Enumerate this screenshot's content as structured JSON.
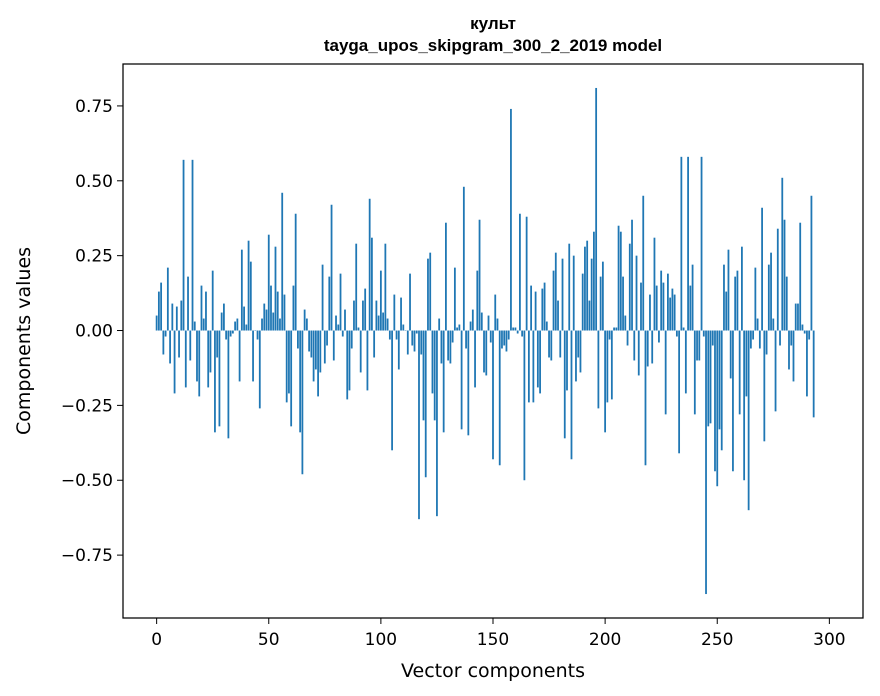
{
  "chart_data": {
    "type": "bar",
    "title_line1": "культ",
    "title_line2": "tayga_upos_skipgram_300_2_2019 model",
    "xlabel": "Vector components",
    "ylabel": "Components values",
    "xlim": [
      -15,
      315
    ],
    "ylim": [
      -0.96,
      0.89
    ],
    "xticks": [
      0,
      50,
      100,
      150,
      200,
      250,
      300
    ],
    "yticks": [
      -0.75,
      -0.5,
      -0.25,
      0.0,
      0.25,
      0.5,
      0.75
    ],
    "ytick_labels": [
      "−0.75",
      "−0.50",
      "−0.25",
      "0.00",
      "0.25",
      "0.50",
      "0.75"
    ],
    "bar_color": "#1f77b4",
    "values": [
      0.05,
      0.13,
      0.16,
      -0.08,
      -0.02,
      0.21,
      -0.11,
      0.09,
      -0.21,
      0.08,
      -0.09,
      0.1,
      0.57,
      -0.19,
      0.18,
      -0.1,
      0.57,
      0.03,
      -0.17,
      -0.22,
      0.15,
      0.04,
      0.13,
      -0.19,
      -0.14,
      0.2,
      -0.34,
      -0.09,
      -0.32,
      0.06,
      0.09,
      -0.03,
      -0.36,
      -0.02,
      -0.01,
      0.03,
      0.04,
      -0.17,
      0.27,
      0.08,
      0.02,
      0.3,
      0.23,
      -0.17,
      0.0,
      -0.03,
      -0.26,
      0.04,
      0.09,
      0.07,
      0.32,
      0.15,
      0.06,
      0.28,
      0.13,
      0.04,
      0.46,
      0.12,
      -0.24,
      -0.21,
      -0.32,
      0.15,
      0.39,
      -0.06,
      -0.34,
      -0.48,
      0.07,
      0.04,
      -0.07,
      -0.09,
      -0.17,
      -0.13,
      -0.22,
      -0.14,
      0.22,
      -0.11,
      -0.05,
      0.18,
      0.42,
      -0.1,
      0.05,
      0.02,
      0.19,
      -0.02,
      0.07,
      -0.23,
      -0.2,
      -0.06,
      0.1,
      0.29,
      0.01,
      -0.14,
      0.1,
      0.14,
      -0.2,
      0.44,
      0.31,
      -0.09,
      0.1,
      0.05,
      0.2,
      0.06,
      0.29,
      0.04,
      -0.03,
      -0.4,
      0.12,
      -0.03,
      -0.13,
      0.11,
      0.02,
      0.0,
      -0.08,
      0.19,
      -0.05,
      -0.07,
      -0.01,
      -0.63,
      -0.08,
      -0.3,
      -0.49,
      0.24,
      0.26,
      -0.21,
      -0.3,
      -0.62,
      0.04,
      -0.11,
      -0.34,
      0.36,
      -0.1,
      -0.11,
      -0.04,
      0.21,
      0.01,
      0.02,
      -0.33,
      0.48,
      -0.06,
      -0.35,
      0.03,
      0.07,
      -0.19,
      0.2,
      0.37,
      0.06,
      -0.14,
      -0.15,
      0.05,
      -0.04,
      -0.43,
      0.12,
      0.04,
      -0.45,
      -0.06,
      -0.05,
      -0.07,
      -0.03,
      0.74,
      0.01,
      0.01,
      -0.01,
      0.39,
      -0.02,
      -0.5,
      0.38,
      -0.24,
      0.15,
      -0.24,
      0.13,
      -0.19,
      -0.21,
      0.14,
      0.16,
      0.03,
      -0.09,
      -0.1,
      0.2,
      0.26,
      0.1,
      -0.09,
      0.24,
      -0.36,
      -0.2,
      0.29,
      -0.43,
      0.25,
      -0.17,
      -0.09,
      -0.14,
      0.19,
      0.28,
      0.3,
      0.1,
      0.24,
      0.33,
      0.81,
      -0.26,
      0.18,
      0.23,
      -0.34,
      -0.24,
      -0.03,
      -0.23,
      0.01,
      0.01,
      0.35,
      0.33,
      0.18,
      0.05,
      -0.05,
      0.29,
      0.37,
      -0.1,
      0.25,
      -0.15,
      0.16,
      0.45,
      -0.45,
      -0.12,
      0.12,
      -0.11,
      0.31,
      0.15,
      -0.04,
      0.2,
      0.16,
      -0.28,
      0.19,
      0.11,
      0.14,
      0.12,
      -0.02,
      -0.41,
      0.58,
      0.01,
      -0.21,
      0.58,
      0.15,
      0.22,
      -0.28,
      -0.1,
      -0.1,
      0.58,
      -0.02,
      -0.88,
      -0.32,
      -0.31,
      -0.05,
      -0.47,
      -0.52,
      -0.33,
      -0.4,
      0.22,
      0.13,
      0.27,
      -0.16,
      -0.47,
      0.18,
      0.2,
      -0.28,
      0.28,
      -0.5,
      -0.22,
      -0.6,
      -0.06,
      -0.03,
      0.21,
      0.04,
      -0.06,
      0.41,
      -0.37,
      -0.08,
      0.22,
      0.26,
      0.04,
      -0.27,
      0.34,
      -0.05,
      0.51,
      0.37,
      0.18,
      -0.13,
      -0.05,
      -0.17,
      0.09,
      0.09,
      0.36,
      0.02,
      -0.01,
      -0.22,
      -0.03,
      0.45,
      -0.29
    ]
  }
}
